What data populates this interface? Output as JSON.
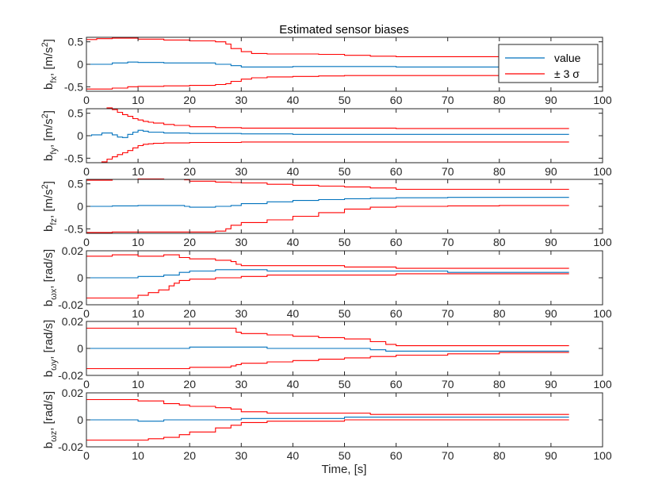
{
  "figure": {
    "title": "Estimated sensor biases",
    "xlabel": "Time, [s]"
  },
  "legend": {
    "placement": "top-right",
    "entries": [
      {
        "label": "value",
        "color": "#0072BD"
      },
      {
        "label": "± 3 σ",
        "color": "#FF0000"
      }
    ]
  },
  "chart_data": [
    {
      "type": "line",
      "ylabel": "b_fx, [m/s^2]",
      "ylabel_main": "b",
      "ylabel_sub": "fx",
      "ylabel_unit": ", [m/s",
      "ylabel_sup": "2",
      "ylabel_end": "]",
      "xlim": [
        0,
        100
      ],
      "ylim": [
        -0.6,
        0.6
      ],
      "xticks": [
        0,
        10,
        20,
        30,
        40,
        50,
        60,
        70,
        80,
        90,
        100
      ],
      "yticks": [
        -0.5,
        0,
        0.5
      ],
      "ytick_labels": [
        "-0.5",
        "0",
        "0.5"
      ],
      "series": [
        {
          "role": "value",
          "color": "#0072BD",
          "x": [
            0,
            5,
            8,
            10,
            15,
            20,
            25,
            28,
            30,
            35,
            40,
            50,
            60,
            70,
            80,
            93.5
          ],
          "y": [
            0,
            0.03,
            0.05,
            0.04,
            0.03,
            0.03,
            0,
            -0.03,
            -0.06,
            -0.06,
            -0.05,
            -0.05,
            -0.06,
            -0.06,
            -0.06,
            -0.06
          ]
        },
        {
          "role": "upper",
          "color": "#FF0000",
          "x": [
            0,
            2,
            5,
            8,
            10,
            15,
            20,
            25,
            27,
            28,
            30,
            32,
            35,
            40,
            45,
            50,
            55,
            60,
            70,
            80,
            93.5
          ],
          "y": [
            0.55,
            0.57,
            0.58,
            0.58,
            0.56,
            0.54,
            0.52,
            0.5,
            0.45,
            0.35,
            0.28,
            0.24,
            0.23,
            0.23,
            0.22,
            0.2,
            0.18,
            0.17,
            0.17,
            0.16,
            0.15
          ]
        },
        {
          "role": "lower",
          "color": "#FF0000",
          "x": [
            0,
            2,
            5,
            8,
            10,
            15,
            20,
            25,
            27,
            28,
            30,
            32,
            35,
            40,
            45,
            50,
            55,
            60,
            70,
            80,
            93.5
          ],
          "y": [
            -0.55,
            -0.55,
            -0.53,
            -0.5,
            -0.49,
            -0.48,
            -0.47,
            -0.45,
            -0.43,
            -0.38,
            -0.33,
            -0.3,
            -0.28,
            -0.27,
            -0.26,
            -0.25,
            -0.25,
            -0.25,
            -0.25,
            -0.25,
            -0.25
          ]
        }
      ]
    },
    {
      "type": "line",
      "ylabel": "b_fy, [m/s^2]",
      "ylabel_main": "b",
      "ylabel_sub": "fy",
      "ylabel_unit": ", [m/s",
      "ylabel_sup": "2",
      "ylabel_end": "]",
      "xlim": [
        0,
        100
      ],
      "ylim": [
        -0.6,
        0.6
      ],
      "xticks": [
        0,
        10,
        20,
        30,
        40,
        50,
        60,
        70,
        80,
        90,
        100
      ],
      "yticks": [
        -0.5,
        0,
        0.5
      ],
      "ytick_labels": [
        "-0.5",
        "0",
        "0.5"
      ],
      "series": [
        {
          "role": "value",
          "color": "#0072BD",
          "x": [
            0,
            1,
            3,
            5,
            6,
            7,
            8,
            9,
            10,
            11,
            12,
            15,
            20,
            30,
            40,
            60,
            80,
            93.5
          ],
          "y": [
            0,
            0.02,
            0.06,
            0.02,
            -0.03,
            -0.04,
            0.03,
            0.08,
            0.12,
            0.1,
            0.08,
            0.06,
            0.05,
            0.04,
            0.03,
            0.03,
            0.03,
            0.03
          ]
        },
        {
          "role": "upper",
          "color": "#FF0000",
          "x": [
            0,
            2,
            4,
            5,
            6,
            7,
            8,
            9,
            10,
            11,
            12,
            13,
            15,
            17,
            20,
            25,
            30,
            40,
            60,
            80,
            93.5
          ],
          "y": [
            0.6,
            0.6,
            0.62,
            0.58,
            0.52,
            0.47,
            0.43,
            0.38,
            0.35,
            0.32,
            0.3,
            0.28,
            0.25,
            0.23,
            0.2,
            0.18,
            0.17,
            0.17,
            0.16,
            0.16,
            0.16
          ]
        },
        {
          "role": "lower",
          "color": "#FF0000",
          "x": [
            0,
            2,
            3,
            4,
            5,
            6,
            7,
            8,
            9,
            10,
            11,
            12,
            13,
            15,
            20,
            30,
            40,
            60,
            80,
            93.5
          ],
          "y": [
            -0.6,
            -0.6,
            -0.58,
            -0.52,
            -0.47,
            -0.42,
            -0.38,
            -0.33,
            -0.27,
            -0.22,
            -0.19,
            -0.18,
            -0.17,
            -0.16,
            -0.15,
            -0.14,
            -0.14,
            -0.14,
            -0.14,
            -0.14
          ]
        }
      ]
    },
    {
      "type": "line",
      "ylabel": "b_fz, [m/s^2]",
      "ylabel_main": "b",
      "ylabel_sub": "fz",
      "ylabel_unit": ", [m/s",
      "ylabel_sup": "2",
      "ylabel_end": "]",
      "xlim": [
        0,
        100
      ],
      "ylim": [
        -0.6,
        0.6
      ],
      "xticks": [
        0,
        10,
        20,
        30,
        40,
        50,
        60,
        70,
        80,
        90,
        100
      ],
      "yticks": [
        -0.5,
        0,
        0.5
      ],
      "ytick_labels": [
        "-0.5",
        "0",
        "0.5"
      ],
      "series": [
        {
          "role": "value",
          "color": "#0072BD",
          "x": [
            0,
            5,
            10,
            15,
            19,
            20,
            25,
            28,
            30,
            35,
            40,
            45,
            50,
            55,
            60,
            70,
            80,
            93.5
          ],
          "y": [
            0,
            0.01,
            0.02,
            0.02,
            0,
            -0.02,
            0,
            0.02,
            0.06,
            0.1,
            0.13,
            0.15,
            0.17,
            0.18,
            0.19,
            0.2,
            0.2,
            0.2
          ]
        },
        {
          "role": "upper",
          "color": "#FF0000",
          "x": [
            0,
            5,
            10,
            15,
            19,
            20,
            25,
            28,
            30,
            35,
            40,
            45,
            50,
            55,
            60,
            70,
            80,
            93.5
          ],
          "y": [
            0.58,
            0.6,
            0.61,
            0.6,
            0.59,
            0.56,
            0.54,
            0.53,
            0.52,
            0.49,
            0.47,
            0.45,
            0.43,
            0.41,
            0.38,
            0.38,
            0.38,
            0.38
          ]
        },
        {
          "role": "lower",
          "color": "#FF0000",
          "x": [
            0,
            5,
            10,
            15,
            19,
            20,
            25,
            27,
            28,
            30,
            35,
            40,
            45,
            50,
            55,
            60,
            70,
            80,
            93.5
          ],
          "y": [
            -0.58,
            -0.57,
            -0.57,
            -0.57,
            -0.57,
            -0.57,
            -0.55,
            -0.5,
            -0.42,
            -0.36,
            -0.3,
            -0.22,
            -0.14,
            -0.06,
            -0.02,
            0,
            0.01,
            0.02,
            0.02
          ]
        }
      ]
    },
    {
      "type": "line",
      "ylabel": "b_ωx, [rad/s]",
      "ylabel_main": "b",
      "ylabel_sub": "ωx",
      "ylabel_unit": ", [rad/s]",
      "ylabel_sup": "",
      "ylabel_end": "",
      "xlim": [
        0,
        100
      ],
      "ylim": [
        -0.02,
        0.02
      ],
      "xticks": [
        0,
        10,
        20,
        30,
        40,
        50,
        60,
        70,
        80,
        90,
        100
      ],
      "yticks": [
        -0.02,
        0,
        0.02
      ],
      "ytick_labels": [
        "-0.02",
        "0",
        "0.02"
      ],
      "series": [
        {
          "role": "value",
          "color": "#0072BD",
          "x": [
            0,
            5,
            10,
            15,
            18,
            20,
            25,
            30,
            35,
            40,
            50,
            60,
            70,
            80,
            93.5
          ],
          "y": [
            0,
            0,
            0.001,
            0.002,
            0.004,
            0.005,
            0.006,
            0.006,
            0.005,
            0.005,
            0.005,
            0.005,
            0.004,
            0.004,
            0.004
          ]
        },
        {
          "role": "upper",
          "color": "#FF0000",
          "x": [
            0,
            5,
            10,
            15,
            17,
            18,
            20,
            25,
            28,
            29,
            30,
            35,
            40,
            50,
            60,
            70,
            80,
            93.5
          ],
          "y": [
            0.016,
            0.017,
            0.016,
            0.017,
            0.017,
            0.015,
            0.014,
            0.013,
            0.012,
            0.01,
            0.009,
            0.009,
            0.009,
            0.008,
            0.007,
            0.007,
            0.007,
            0.007
          ]
        },
        {
          "role": "lower",
          "color": "#FF0000",
          "x": [
            0,
            5,
            10,
            12,
            14,
            16,
            17,
            18,
            20,
            25,
            30,
            35,
            40,
            50,
            60,
            70,
            80,
            93.5
          ],
          "y": [
            -0.015,
            -0.015,
            -0.013,
            -0.011,
            -0.009,
            -0.006,
            -0.004,
            -0.002,
            -0.001,
            0,
            0.001,
            0.002,
            0.002,
            0.002,
            0.003,
            0.003,
            0.003,
            0.003
          ]
        }
      ]
    },
    {
      "type": "line",
      "ylabel": "b_ωy, [rad/s]",
      "ylabel_main": "b",
      "ylabel_sub": "ωy",
      "ylabel_unit": ", [rad/s]",
      "ylabel_sup": "",
      "ylabel_end": "",
      "xlim": [
        0,
        100
      ],
      "ylim": [
        -0.02,
        0.02
      ],
      "xticks": [
        0,
        10,
        20,
        30,
        40,
        50,
        60,
        70,
        80,
        90,
        100
      ],
      "yticks": [
        -0.02,
        0,
        0.02
      ],
      "ytick_labels": [
        "-0.02",
        "0",
        "0.02"
      ],
      "series": [
        {
          "role": "value",
          "color": "#0072BD",
          "x": [
            0,
            5,
            10,
            15,
            20,
            25,
            30,
            35,
            40,
            45,
            50,
            55,
            58,
            60,
            70,
            80,
            93.5
          ],
          "y": [
            0,
            0,
            0,
            0,
            0.001,
            0.001,
            0.001,
            0,
            0,
            0,
            0,
            -0.001,
            -0.002,
            -0.002,
            -0.002,
            -0.002,
            -0.002
          ]
        },
        {
          "role": "upper",
          "color": "#FF0000",
          "x": [
            0,
            10,
            20,
            25,
            28,
            29,
            30,
            35,
            40,
            45,
            50,
            55,
            58,
            60,
            70,
            80,
            93.5
          ],
          "y": [
            0.015,
            0.015,
            0.015,
            0.015,
            0.015,
            0.012,
            0.011,
            0.01,
            0.009,
            0.008,
            0.007,
            0.005,
            0.003,
            0.002,
            0.002,
            0.002,
            0.002
          ]
        },
        {
          "role": "lower",
          "color": "#FF0000",
          "x": [
            0,
            10,
            20,
            25,
            28,
            29,
            30,
            35,
            40,
            45,
            50,
            55,
            60,
            70,
            80,
            93.5
          ],
          "y": [
            -0.015,
            -0.015,
            -0.014,
            -0.014,
            -0.013,
            -0.012,
            -0.011,
            -0.01,
            -0.009,
            -0.008,
            -0.007,
            -0.006,
            -0.005,
            -0.004,
            -0.003,
            -0.003
          ]
        }
      ]
    },
    {
      "type": "line",
      "ylabel": "b_ωz, [rad/s]",
      "ylabel_main": "b",
      "ylabel_sub": "ωz",
      "ylabel_unit": ", [rad/s]",
      "ylabel_sup": "",
      "ylabel_end": "",
      "xlim": [
        0,
        100
      ],
      "ylim": [
        -0.02,
        0.02
      ],
      "xticks": [
        0,
        10,
        20,
        30,
        40,
        50,
        60,
        70,
        80,
        90,
        100
      ],
      "yticks": [
        -0.02,
        0,
        0.02
      ],
      "ytick_labels": [
        "-0.02",
        "0",
        "0.02"
      ],
      "series": [
        {
          "role": "value",
          "color": "#0072BD",
          "x": [
            0,
            5,
            10,
            15,
            20,
            25,
            30,
            35,
            40,
            50,
            60,
            70,
            80,
            93.5
          ],
          "y": [
            0,
            0,
            -0.001,
            0,
            0,
            0,
            0.001,
            0.001,
            0.001,
            0.002,
            0.002,
            0.002,
            0.002,
            0.002
          ]
        },
        {
          "role": "upper",
          "color": "#FF0000",
          "x": [
            0,
            5,
            10,
            15,
            18,
            20,
            25,
            28,
            30,
            35,
            40,
            45,
            50,
            55,
            60,
            70,
            80,
            93.5
          ],
          "y": [
            0.015,
            0.015,
            0.014,
            0.012,
            0.011,
            0.01,
            0.009,
            0.008,
            0.006,
            0.005,
            0.005,
            0.005,
            0.005,
            0.004,
            0.004,
            0.004,
            0.004,
            0.004
          ]
        },
        {
          "role": "lower",
          "color": "#FF0000",
          "x": [
            0,
            5,
            10,
            12,
            15,
            18,
            20,
            25,
            28,
            30,
            35,
            40,
            45,
            50,
            60,
            70,
            80,
            93.5
          ],
          "y": [
            -0.015,
            -0.015,
            -0.015,
            -0.014,
            -0.013,
            -0.011,
            -0.009,
            -0.006,
            -0.004,
            -0.002,
            -0.001,
            -0.001,
            -0.001,
            0,
            0,
            0,
            0,
            0
          ]
        }
      ]
    }
  ]
}
